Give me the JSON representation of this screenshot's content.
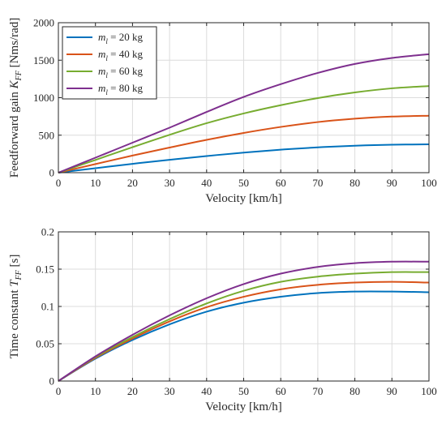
{
  "chart_data": [
    {
      "type": "line",
      "xlabel": "Velocity [km/h]",
      "ylabel": "Feedforward gain K",
      "ylabel_sub": "FF",
      "ylabel_unit": " [Nms/rad]",
      "xlim": [
        0,
        100
      ],
      "ylim": [
        0,
        2000
      ],
      "xticks": [
        "0",
        "10",
        "20",
        "30",
        "40",
        "50",
        "60",
        "70",
        "80",
        "90",
        "100"
      ],
      "yticks": [
        "0",
        "500",
        "1000",
        "1500",
        "2000"
      ],
      "grid": true,
      "legend_position": "top-left",
      "x": [
        0,
        10,
        20,
        30,
        40,
        50,
        60,
        70,
        80,
        90,
        100
      ],
      "series": [
        {
          "name": "m_l = 20 kg",
          "legend_var": "m",
          "legend_sub": "l",
          "legend_rest": " = 20 kg",
          "color": "#0072BD",
          "values": [
            0,
            60,
            118,
            172,
            222,
            268,
            307,
            338,
            360,
            373,
            378
          ]
        },
        {
          "name": "m_l = 40 kg",
          "legend_var": "m",
          "legend_sub": "l",
          "legend_rest": " = 40 kg",
          "color": "#D95319",
          "values": [
            0,
            115,
            228,
            335,
            438,
            530,
            610,
            675,
            720,
            748,
            760
          ]
        },
        {
          "name": "m_l = 60 kg",
          "legend_var": "m",
          "legend_sub": "l",
          "legend_rest": " = 60 kg",
          "color": "#77AC30",
          "values": [
            0,
            170,
            340,
            505,
            660,
            790,
            900,
            995,
            1070,
            1125,
            1155
          ]
        },
        {
          "name": "m_l = 80 kg",
          "legend_var": "m",
          "legend_sub": "l",
          "legend_rest": " = 80 kg",
          "color": "#7E2F8E",
          "values": [
            0,
            200,
            400,
            600,
            810,
            1010,
            1180,
            1330,
            1450,
            1530,
            1580
          ]
        }
      ]
    },
    {
      "type": "line",
      "xlabel": "Velocity [km/h]",
      "ylabel": "Time constant T",
      "ylabel_sub": "FF",
      "ylabel_unit": " [s]",
      "xlim": [
        0,
        100
      ],
      "ylim": [
        0,
        0.2
      ],
      "xticks": [
        "0",
        "10",
        "20",
        "30",
        "40",
        "50",
        "60",
        "70",
        "80",
        "90",
        "100"
      ],
      "yticks": [
        "0",
        "0.05",
        "0.1",
        "0.15",
        "0.2"
      ],
      "grid": true,
      "x": [
        0,
        10,
        20,
        30,
        40,
        50,
        60,
        70,
        80,
        90,
        100
      ],
      "series": [
        {
          "color": "#0072BD",
          "values": [
            0,
            0.03,
            0.055,
            0.076,
            0.093,
            0.105,
            0.113,
            0.118,
            0.12,
            0.12,
            0.119
          ]
        },
        {
          "color": "#D95319",
          "values": [
            0,
            0.031,
            0.057,
            0.08,
            0.099,
            0.113,
            0.123,
            0.129,
            0.132,
            0.133,
            0.132
          ]
        },
        {
          "color": "#77AC30",
          "values": [
            0,
            0.032,
            0.059,
            0.083,
            0.104,
            0.121,
            0.133,
            0.14,
            0.144,
            0.146,
            0.146
          ]
        },
        {
          "color": "#7E2F8E",
          "values": [
            0,
            0.033,
            0.062,
            0.088,
            0.111,
            0.13,
            0.144,
            0.153,
            0.158,
            0.16,
            0.16
          ]
        }
      ]
    }
  ]
}
